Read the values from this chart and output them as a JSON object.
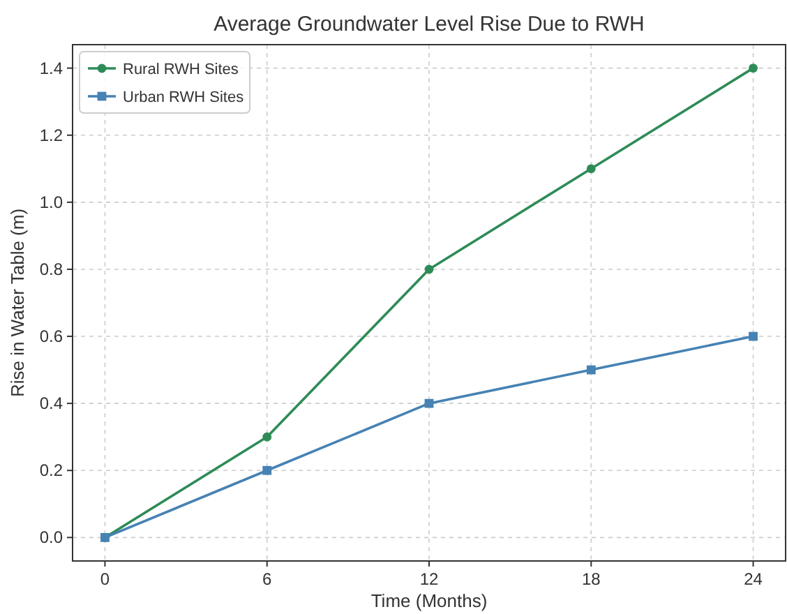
{
  "chart_data": {
    "type": "line",
    "title": "Average Groundwater Level Rise Due to RWH",
    "xlabel": "Time (Months)",
    "ylabel": "Rise in Water Table (m)",
    "x": [
      0,
      6,
      12,
      18,
      24
    ],
    "series": [
      {
        "name": "Rural RWH Sites",
        "color": "#2e8b57",
        "marker": "circle",
        "values": [
          0,
          0.3,
          0.8,
          1.1,
          1.4
        ]
      },
      {
        "name": "Urban RWH Sites",
        "color": "#4682b4",
        "marker": "square",
        "values": [
          0,
          0.2,
          0.4,
          0.5,
          0.6
        ]
      }
    ],
    "xlim": [
      -1.2,
      25.2
    ],
    "xticks": [
      0,
      6,
      12,
      18,
      24
    ],
    "ylim": [
      -0.07,
      1.47
    ],
    "yticks": [
      {
        "value": 0,
        "label": "0.0"
      },
      0.2,
      0.4,
      0.6,
      0.8,
      {
        "value": 1,
        "label": "1.0"
      },
      1.2,
      1.4
    ],
    "grid": true,
    "legend": "top left",
    "line_style": "solid"
  }
}
